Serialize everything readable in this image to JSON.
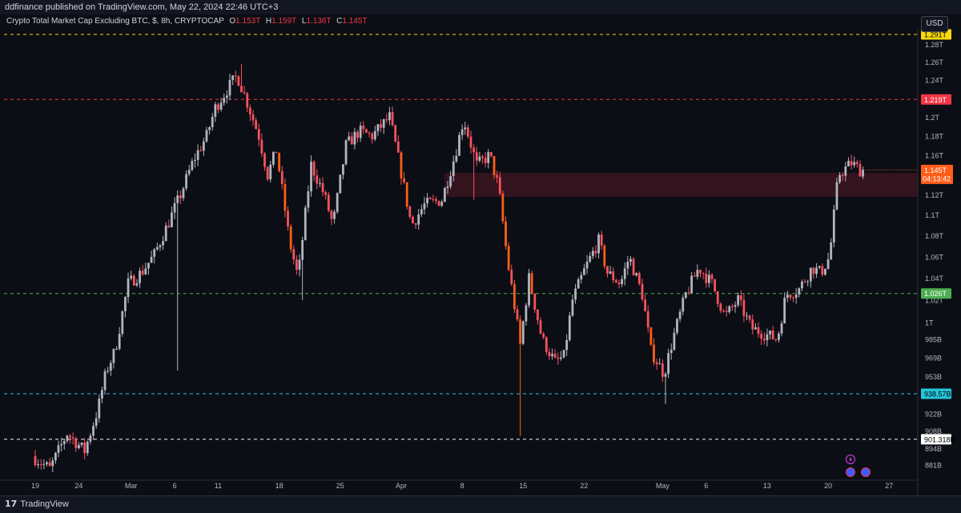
{
  "header": {
    "published_text": "ddfinance published on TradingView.com, May 22, 2024 22:46 UTC+3"
  },
  "legend": {
    "symbol": "Crypto Total Market Cap Excluding BTC, $, 8h, CRYPTOCAP",
    "o_label": "O",
    "o_value": "1.153T",
    "h_label": "H",
    "h_value": "1.159T",
    "l_label": "L",
    "l_value": "1.136T",
    "c_label": "C",
    "c_value": "1.145T"
  },
  "currency_button": "USD",
  "footer": {
    "brand": "TradingView",
    "logo_glyph": "17"
  },
  "icons": [
    "flash-icon",
    "flag-us-icon"
  ],
  "colors": {
    "background": "#0c0e15",
    "up": "#b2b5be",
    "down": "#f7525f",
    "down_orange": "#ff5e1a",
    "yellow_level": "#f5d90a",
    "red_level": "#f23645",
    "green_level": "#4caf50",
    "cyan_level": "#26c6da",
    "white_level": "#ffffff",
    "zone": "#3b1420"
  },
  "chart_data": {
    "type": "candlestick",
    "title": "Crypto Total Market Cap Excluding BTC, $, 8h, CRYPTOCAP",
    "y_unit": "USD",
    "y_scale": "log",
    "ylim": [
      0.872,
      1.305
    ],
    "y_ticks": [
      {
        "value": 1.28,
        "label": "1.28T"
      },
      {
        "value": 1.26,
        "label": "1.26T"
      },
      {
        "value": 1.24,
        "label": "1.24T"
      },
      {
        "value": 1.2,
        "label": "1.2T"
      },
      {
        "value": 1.18,
        "label": "1.18T"
      },
      {
        "value": 1.16,
        "label": "1.16T"
      },
      {
        "value": 1.12,
        "label": "1.12T"
      },
      {
        "value": 1.1,
        "label": "1.1T"
      },
      {
        "value": 1.08,
        "label": "1.08T"
      },
      {
        "value": 1.06,
        "label": "1.06T"
      },
      {
        "value": 1.04,
        "label": "1.04T"
      },
      {
        "value": 1.02,
        "label": "1.02T"
      },
      {
        "value": 1.0,
        "label": "1T"
      },
      {
        "value": 0.985,
        "label": "985B"
      },
      {
        "value": 0.969,
        "label": "969B"
      },
      {
        "value": 0.953,
        "label": "953B"
      },
      {
        "value": 0.922,
        "label": "922B"
      },
      {
        "value": 0.908,
        "label": "908B"
      },
      {
        "value": 0.894,
        "label": "894B"
      },
      {
        "value": 0.881,
        "label": "881B"
      }
    ],
    "x_ticks": [
      {
        "label": "19",
        "day": 0
      },
      {
        "label": "24",
        "day": 5
      },
      {
        "label": "Mar",
        "day": 11
      },
      {
        "label": "6",
        "day": 16
      },
      {
        "label": "11",
        "day": 21
      },
      {
        "label": "18",
        "day": 28
      },
      {
        "label": "25",
        "day": 35
      },
      {
        "label": "Apr",
        "day": 42
      },
      {
        "label": "8",
        "day": 49
      },
      {
        "label": "15",
        "day": 56
      },
      {
        "label": "22",
        "day": 63
      },
      {
        "label": "May",
        "day": 72
      },
      {
        "label": "6",
        "day": 77
      },
      {
        "label": "13",
        "day": 84
      },
      {
        "label": "20",
        "day": 91
      },
      {
        "label": "27",
        "day": 98
      }
    ],
    "horizontal_levels": [
      {
        "value": 1.2915,
        "label": "1.291T",
        "color": "#f5d90a",
        "text_color": "#000000"
      },
      {
        "value": 1.219,
        "label": "1.219T",
        "color": "#f23645",
        "text_color": "#ffffff"
      },
      {
        "value": 1.026,
        "label": "1.026T",
        "color": "#4caf50",
        "text_color": "#ffffff"
      },
      {
        "value": 0.93857,
        "label": "938.57B",
        "color": "#26c6da",
        "text_color": "#000000"
      },
      {
        "value": 0.901318,
        "label": "901.318B",
        "color": "#ffffff",
        "text_color": "#000000"
      }
    ],
    "zone": {
      "from_day": 47,
      "to_day": 103,
      "low": 1.118,
      "high": 1.142
    },
    "current_price": {
      "value": 1.145,
      "label": "1.145T",
      "countdown": "04:13:42"
    },
    "price_path": [
      {
        "day": 0,
        "value": 0.888
      },
      {
        "day": 2,
        "value": 0.878
      },
      {
        "day": 4,
        "value": 0.906
      },
      {
        "day": 6,
        "value": 0.892
      },
      {
        "day": 7.5,
        "value": 0.925
      },
      {
        "day": 8.5,
        "value": 0.958
      },
      {
        "day": 9.5,
        "value": 0.975
      },
      {
        "day": 11,
        "value": 1.035
      },
      {
        "day": 12.5,
        "value": 1.045
      },
      {
        "day": 14,
        "value": 1.062
      },
      {
        "day": 15.5,
        "value": 1.09
      },
      {
        "day": 17,
        "value": 1.12
      },
      {
        "day": 18.5,
        "value": 1.155
      },
      {
        "day": 20,
        "value": 1.18
      },
      {
        "day": 21,
        "value": 1.21
      },
      {
        "day": 22.5,
        "value": 1.232
      },
      {
        "day": 23.5,
        "value": 1.245
      },
      {
        "day": 24.5,
        "value": 1.22
      },
      {
        "day": 26,
        "value": 1.18
      },
      {
        "day": 27,
        "value": 1.14
      },
      {
        "day": 28,
        "value": 1.165
      },
      {
        "day": 29.5,
        "value": 1.075
      },
      {
        "day": 30.5,
        "value": 1.04
      },
      {
        "day": 32,
        "value": 1.15
      },
      {
        "day": 33.5,
        "value": 1.12
      },
      {
        "day": 34.5,
        "value": 1.09
      },
      {
        "day": 36,
        "value": 1.17
      },
      {
        "day": 37.5,
        "value": 1.185
      },
      {
        "day": 39,
        "value": 1.18
      },
      {
        "day": 41,
        "value": 1.2
      },
      {
        "day": 42.5,
        "value": 1.135
      },
      {
        "day": 43.5,
        "value": 1.09
      },
      {
        "day": 45,
        "value": 1.11
      },
      {
        "day": 47,
        "value": 1.115
      },
      {
        "day": 48.5,
        "value": 1.16
      },
      {
        "day": 49.5,
        "value": 1.198
      },
      {
        "day": 51,
        "value": 1.15
      },
      {
        "day": 52.5,
        "value": 1.16
      },
      {
        "day": 53.5,
        "value": 1.128
      },
      {
        "day": 54.5,
        "value": 1.058
      },
      {
        "day": 56,
        "value": 0.98
      },
      {
        "day": 57,
        "value": 1.04
      },
      {
        "day": 58.5,
        "value": 0.985
      },
      {
        "day": 60,
        "value": 0.965
      },
      {
        "day": 61,
        "value": 0.97
      },
      {
        "day": 62,
        "value": 1.02
      },
      {
        "day": 63.5,
        "value": 1.05
      },
      {
        "day": 65,
        "value": 1.075
      },
      {
        "day": 66,
        "value": 1.045
      },
      {
        "day": 67.5,
        "value": 1.035
      },
      {
        "day": 68.5,
        "value": 1.06
      },
      {
        "day": 70,
        "value": 1.025
      },
      {
        "day": 71,
        "value": 0.975
      },
      {
        "day": 72.5,
        "value": 0.955
      },
      {
        "day": 73.5,
        "value": 0.985
      },
      {
        "day": 75,
        "value": 1.025
      },
      {
        "day": 76.5,
        "value": 1.05
      },
      {
        "day": 78,
        "value": 1.035
      },
      {
        "day": 79.5,
        "value": 1.005
      },
      {
        "day": 81,
        "value": 1.02
      },
      {
        "day": 82.5,
        "value": 0.995
      },
      {
        "day": 84,
        "value": 0.99
      },
      {
        "day": 85.5,
        "value": 0.985
      },
      {
        "day": 86.5,
        "value": 1.025
      },
      {
        "day": 88,
        "value": 1.03
      },
      {
        "day": 89.5,
        "value": 1.05
      },
      {
        "day": 90.5,
        "value": 1.045
      },
      {
        "day": 91.5,
        "value": 1.06
      },
      {
        "day": 92.5,
        "value": 1.14
      },
      {
        "day": 94,
        "value": 1.152
      },
      {
        "day": 95,
        "value": 1.145
      }
    ],
    "spikes": [
      {
        "day": 16.3,
        "low": 0.958
      },
      {
        "day": 30.7,
        "low": 1.02
      },
      {
        "day": 55.8,
        "low": 0.904
      },
      {
        "day": 72.2,
        "low": 0.93
      },
      {
        "day": 50.5,
        "low": 1.115
      },
      {
        "day": 23.8,
        "high": 1.258
      }
    ]
  }
}
